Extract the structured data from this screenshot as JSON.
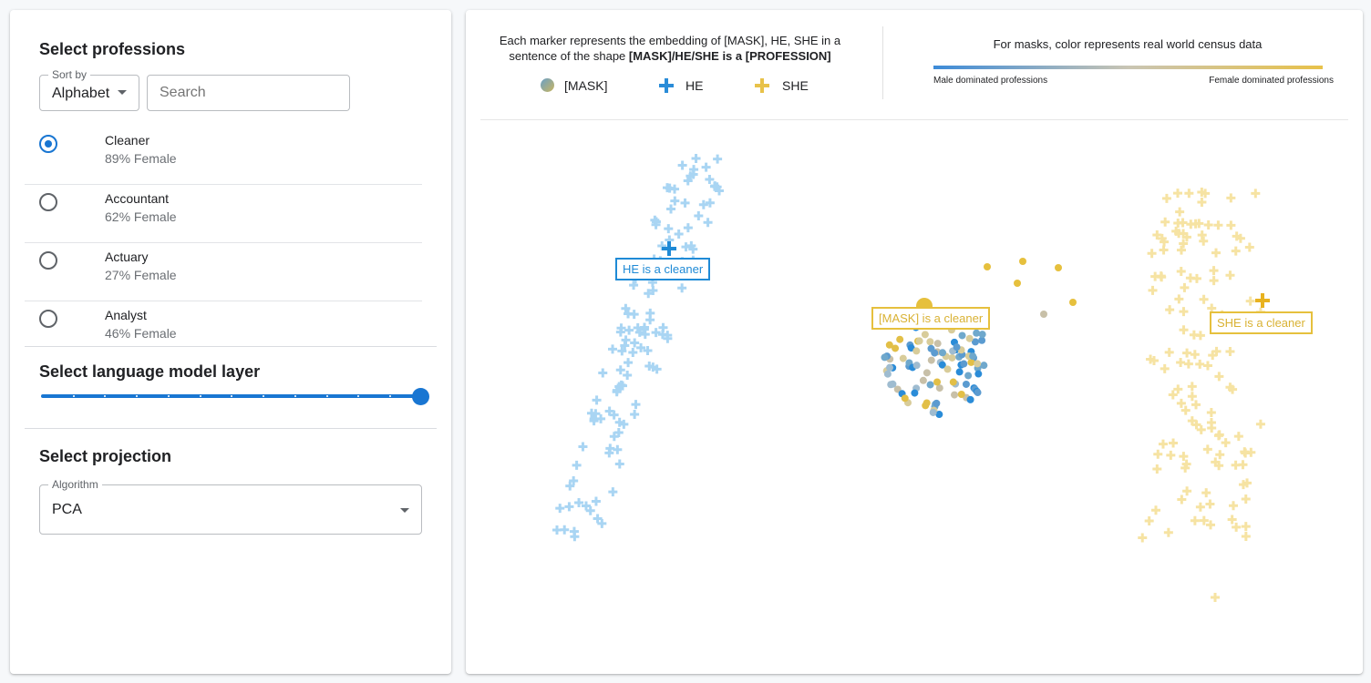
{
  "left_panel": {
    "professions_title": "Select professions",
    "sort": {
      "label": "Sort by",
      "value": "Alphabet"
    },
    "search": {
      "placeholder": "Search",
      "value": ""
    },
    "professions": [
      {
        "name": "Cleaner",
        "stat": "89% Female",
        "selected": true
      },
      {
        "name": "Accountant",
        "stat": "62% Female",
        "selected": false
      },
      {
        "name": "Actuary",
        "stat": "27% Female",
        "selected": false
      },
      {
        "name": "Analyst",
        "stat": "46% Female",
        "selected": false
      }
    ],
    "layer_title": "Select language model layer",
    "layer_slider": {
      "value": 12,
      "max": 12
    },
    "projection_title": "Select projection",
    "algorithm": {
      "label": "Algorithm",
      "value": "PCA"
    }
  },
  "legend": {
    "description_line1": "Each marker represents the embedding of [MASK], HE, SHE in a",
    "description_line2_prefix": "sentence of the shape ",
    "description_line2_bold": "[MASK]/HE/SHE is a [PROFESSION]",
    "items": [
      {
        "label": "[MASK]",
        "icon": "mask-dot-icon"
      },
      {
        "label": "HE",
        "icon": "plus-icon",
        "color": "#2a8cd8"
      },
      {
        "label": "SHE",
        "icon": "plus-icon",
        "color": "#e8c24a"
      }
    ],
    "census_title": "For masks, color represents real world census data",
    "male_label": "Male dominated professions",
    "female_label": "Female dominated professions"
  },
  "colors": {
    "accent": "#1976d2",
    "he": "#2a8cd8",
    "she": "#e8c24a",
    "he_light": "#a9d5f3",
    "she_light": "#f6e3a3"
  },
  "plot": {
    "he_label": "HE is a cleaner",
    "mask_label": "[MASK] is a cleaner",
    "she_label": "SHE is a cleaner"
  }
}
